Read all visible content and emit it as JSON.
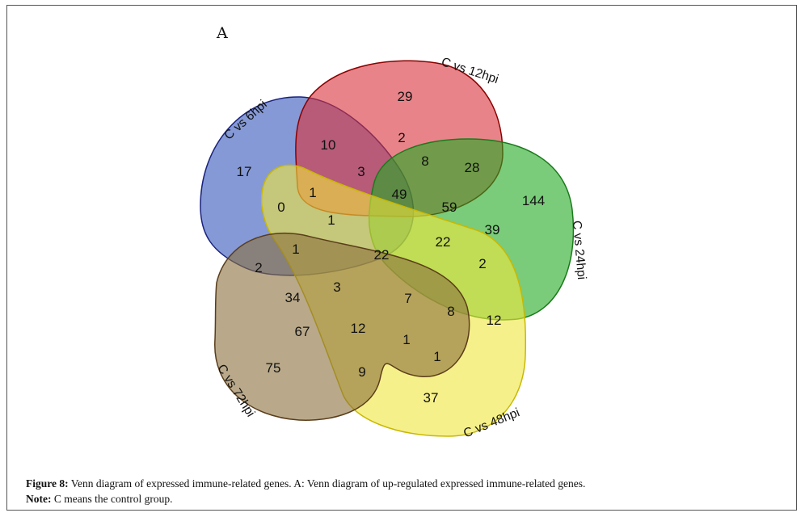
{
  "panel_label": "A",
  "sets": [
    {
      "id": "s6",
      "label": "C vs 6hpi",
      "color": "#3355bb",
      "stroke": "#1a237e"
    },
    {
      "id": "s12",
      "label": "C vs 12hpi",
      "color": "#d9323a",
      "stroke": "#8b0000"
    },
    {
      "id": "s24",
      "label": "C vs 24hpi",
      "color": "#22aa22",
      "stroke": "#1b7a1b"
    },
    {
      "id": "s48",
      "label": "C vs 48hpi",
      "color": "#f0e63c",
      "stroke": "#c9b800"
    },
    {
      "id": "s72",
      "label": "C vs 72hpi",
      "color": "#8b6f3c",
      "stroke": "#5a3d1a"
    }
  ],
  "region_counts": [
    "17",
    "29",
    "144",
    "37",
    "75",
    "10",
    "2",
    "8",
    "28",
    "3",
    "1",
    "0",
    "49",
    "59",
    "39",
    "1",
    "22",
    "22",
    "2",
    "1",
    "2",
    "34",
    "3",
    "7",
    "8",
    "12",
    "67",
    "12",
    "1",
    "1",
    "9"
  ],
  "caption": {
    "figure_label": "Figure 8:",
    "figure_text": " Venn diagram of expressed immune-related genes. A: Venn diagram of up-regulated expressed immune-related genes.",
    "note_label": "Note:",
    "note_text": " C means the control group."
  }
}
